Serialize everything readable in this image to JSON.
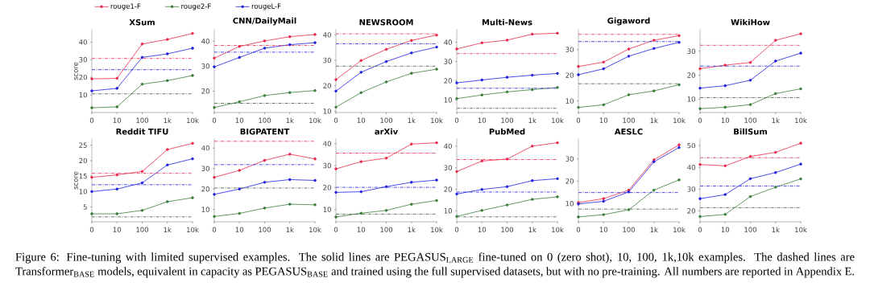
{
  "chart_data": [
    {
      "type": "line",
      "title": "XSum",
      "ylabel": "score",
      "categories": [
        "0",
        "10",
        "100",
        "1k",
        "10k"
      ],
      "legend": "top",
      "marker": "circle",
      "ylim": [
        0,
        47
      ],
      "yticks": [
        10,
        20,
        30,
        40
      ],
      "series": [
        {
          "name": "rouge1-F",
          "color": "#e8284a",
          "values": [
            19.1,
            19.4,
            38.9,
            41.5,
            44.9
          ]
        },
        {
          "name": "rouge2-F",
          "color": "#3a7d3a",
          "values": [
            2.7,
            3.2,
            16.1,
            18.1,
            21.0
          ]
        },
        {
          "name": "rougeL-F",
          "color": "#1f1fe0",
          "values": [
            12.3,
            13.7,
            31.3,
            33.3,
            36.5
          ]
        }
      ],
      "ref_lines": [
        {
          "axis": "y",
          "value": 30.7,
          "color": "#e8284a",
          "line_style": "dashdot"
        },
        {
          "axis": "y",
          "value": 10.6,
          "color": "#3a5a3a",
          "line_style": "dashdot"
        },
        {
          "axis": "y",
          "value": 24.3,
          "color": "#1f1fe0",
          "line_style": "dashdot"
        }
      ],
      "annotations": [
        "Figure 6: Fine-tuning with limited supervised examples. The solid lines are PEGASUS$_{LARGE}$ fine-tuned on 0 (zero shot), 10, 100, 1k,10k examples. The dashed lines are Transformer$_{BASE}$ models, equivalent in capacity as PEGASUS$_{BASE}$ and trained using the full supervised datasets, but with no pre-training. All numbers are reported in Appendix E."
      ]
    },
    {
      "type": "line",
      "title": "CNN/DailyMail",
      "categories": [
        "0",
        "10",
        "100",
        "1k",
        "10k"
      ],
      "marker": "circle",
      "ylim": [
        11.4,
        44.6
      ],
      "yticks": [
        20,
        30,
        40
      ],
      "series": [
        {
          "color": "#e8284a",
          "values": [
            33.2,
            37.9,
            40.1,
            41.8,
            42.7
          ]
        },
        {
          "color": "#3a7d3a",
          "values": [
            13.4,
            15.7,
            18.2,
            19.4,
            20.2
          ]
        },
        {
          "color": "#1f1fe0",
          "values": [
            29.7,
            33.5,
            37.2,
            38.6,
            39.4
          ]
        }
      ],
      "ref_lines": [
        {
          "axis": "y",
          "value": 38.3,
          "color": "#e8284a",
          "line_style": "dashdot"
        },
        {
          "axis": "y",
          "value": 15.1,
          "color": "#3a5a3a",
          "line_style": "dashdot"
        },
        {
          "axis": "y",
          "value": 35.6,
          "color": "#1f1fe0",
          "line_style": "dashdot"
        }
      ]
    },
    {
      "type": "line",
      "title": "NEWSROOM",
      "categories": [
        "0",
        "10",
        "100",
        "1k",
        "10k"
      ],
      "marker": "circle",
      "ylim": [
        9.5,
        42
      ],
      "yticks": [
        10,
        20,
        30,
        40
      ],
      "series": [
        {
          "color": "#e8284a",
          "values": [
            22.4,
            29.9,
            34.3,
            37.8,
            39.9
          ]
        },
        {
          "color": "#3a7d3a",
          "values": [
            11.6,
            17.3,
            21.5,
            24.9,
            26.5
          ]
        },
        {
          "color": "#1f1fe0",
          "values": [
            17.9,
            25.3,
            29.5,
            32.9,
            35.2
          ]
        }
      ],
      "ref_lines": [
        {
          "axis": "y",
          "value": 40.4,
          "color": "#e8284a",
          "line_style": "dashdot"
        },
        {
          "axis": "y",
          "value": 27.7,
          "color": "#3a5a3a",
          "line_style": "dashdot"
        },
        {
          "axis": "y",
          "value": 36.5,
          "color": "#1f1fe0",
          "line_style": "dashdot"
        }
      ]
    },
    {
      "type": "line",
      "title": "Multi-News",
      "categories": [
        "0",
        "10",
        "100",
        "1k",
        "10k"
      ],
      "marker": "circle",
      "ylim": [
        3.5,
        46.5
      ],
      "yticks": [
        10,
        20,
        30,
        40
      ],
      "series": [
        {
          "color": "#e8284a",
          "values": [
            36.5,
            39.7,
            41.1,
            44.2,
            44.7
          ]
        },
        {
          "color": "#3a7d3a",
          "values": [
            10.7,
            12.6,
            14.2,
            15.4,
            16.5
          ]
        },
        {
          "color": "#1f1fe0",
          "values": [
            18.9,
            20.4,
            21.8,
            22.9,
            23.8
          ]
        }
      ],
      "ref_lines": [
        {
          "axis": "y",
          "value": 34.1,
          "color": "#e8284a",
          "line_style": "dashdot"
        },
        {
          "axis": "y",
          "value": 5.7,
          "color": "#3a5a3a",
          "line_style": "dashdot"
        },
        {
          "axis": "y",
          "value": 16.1,
          "color": "#1f1fe0",
          "line_style": "dashdot"
        }
      ]
    },
    {
      "type": "line",
      "title": "Gigaword",
      "categories": [
        "0",
        "10",
        "100",
        "1k",
        "10k"
      ],
      "marker": "circle",
      "ylim": [
        5.5,
        37.7
      ],
      "yticks": [
        10,
        20,
        30
      ],
      "series": [
        {
          "color": "#e8284a",
          "values": [
            23.4,
            25.1,
            30.2,
            33.6,
            35.4
          ]
        },
        {
          "color": "#3a7d3a",
          "values": [
            7.5,
            8.5,
            12.4,
            13.9,
            16.3
          ]
        },
        {
          "color": "#1f1fe0",
          "values": [
            20.2,
            22.5,
            27.4,
            30.4,
            32.8
          ]
        }
      ],
      "ref_lines": [
        {
          "axis": "y",
          "value": 35.9,
          "color": "#e8284a",
          "line_style": "dashdot"
        },
        {
          "axis": "y",
          "value": 16.7,
          "color": "#3a5a3a",
          "line_style": "dashdot"
        },
        {
          "axis": "y",
          "value": 33.1,
          "color": "#1f1fe0",
          "line_style": "dashdot"
        }
      ]
    },
    {
      "type": "line",
      "title": "WikiHow",
      "categories": [
        "0",
        "10",
        "100",
        "1k",
        "10k"
      ],
      "marker": "circle",
      "ylim": [
        4.4,
        39
      ],
      "yticks": [
        10,
        20,
        30
      ],
      "series": [
        {
          "color": "#e8284a",
          "values": [
            22.7,
            24.2,
            25.3,
            34.6,
            37.3
          ]
        },
        {
          "color": "#3a7d3a",
          "values": [
            6.0,
            6.6,
            7.7,
            12.3,
            14.3
          ]
        },
        {
          "color": "#1f1fe0",
          "values": [
            14.6,
            15.6,
            17.9,
            25.9,
            29.2
          ]
        }
      ],
      "ref_lines": [
        {
          "axis": "y",
          "value": 32.5,
          "color": "#e8284a",
          "line_style": "dashdot"
        },
        {
          "axis": "y",
          "value": 10.6,
          "color": "#3a5a3a",
          "line_style": "dashdot"
        },
        {
          "axis": "y",
          "value": 23.8,
          "color": "#1f1fe0",
          "line_style": "dashdot"
        }
      ]
    },
    {
      "type": "line",
      "title": "Reddit TIFU",
      "ylabel": "score",
      "categories": [
        "0",
        "10",
        "100",
        "1k",
        "10k"
      ],
      "marker": "circle",
      "ylim": [
        0.2,
        27
      ],
      "yticks": [
        5,
        10,
        15,
        20,
        25
      ],
      "series": [
        {
          "color": "#e8284a",
          "values": [
            14.6,
            15.4,
            16.5,
            23.6,
            25.6
          ]
        },
        {
          "color": "#3a7d3a",
          "values": [
            2.8,
            2.8,
            3.9,
            6.7,
            8.0
          ]
        },
        {
          "color": "#1f1fe0",
          "values": [
            10.0,
            10.8,
            12.8,
            18.6,
            20.6
          ]
        }
      ],
      "ref_lines": [
        {
          "axis": "y",
          "value": 15.9,
          "color": "#e8284a",
          "line_style": "dashdot"
        },
        {
          "axis": "y",
          "value": 1.8,
          "color": "#3a5a3a",
          "line_style": "dashdot"
        },
        {
          "axis": "y",
          "value": 12.2,
          "color": "#1f1fe0",
          "line_style": "dashdot"
        }
      ]
    },
    {
      "type": "line",
      "title": "BIGPATENT",
      "categories": [
        "0",
        "10",
        "100",
        "1k",
        "10k"
      ],
      "marker": "circle",
      "ylim": [
        4,
        44.4
      ],
      "yticks": [
        10,
        20,
        30,
        40
      ],
      "series": [
        {
          "color": "#e8284a",
          "values": [
            25.7,
            29.1,
            34.0,
            37.0,
            34.7
          ]
        },
        {
          "color": "#3a7d3a",
          "values": [
            6.6,
            8.1,
            10.7,
            12.6,
            12.3
          ]
        },
        {
          "color": "#1f1fe0",
          "values": [
            17.4,
            20.0,
            23.3,
            24.6,
            24.2
          ]
        }
      ],
      "ref_lines": [
        {
          "axis": "y",
          "value": 43.3,
          "color": "#e8284a",
          "line_style": "dashdot"
        },
        {
          "axis": "y",
          "value": 20.5,
          "color": "#3a5a3a",
          "line_style": "dashdot"
        },
        {
          "axis": "y",
          "value": 31.9,
          "color": "#1f1fe0",
          "line_style": "dashdot"
        }
      ]
    },
    {
      "type": "line",
      "title": "arXiv",
      "categories": [
        "0",
        "10",
        "100",
        "1k",
        "10k"
      ],
      "marker": "circle",
      "ylim": [
        4.4,
        42.1
      ],
      "yticks": [
        10,
        20,
        30,
        40
      ],
      "series": [
        {
          "color": "#e8284a",
          "values": [
            28.5,
            31.8,
            33.4,
            39.8,
            40.4
          ]
        },
        {
          "color": "#3a7d3a",
          "values": [
            6.6,
            8.3,
            9.6,
            12.4,
            14.1
          ]
        },
        {
          "color": "#1f1fe0",
          "values": [
            17.8,
            18.1,
            20.4,
            22.4,
            23.4
          ]
        }
      ],
      "ref_lines": [
        {
          "axis": "y",
          "value": 35.7,
          "color": "#e8284a",
          "line_style": "dashdot"
        },
        {
          "axis": "y",
          "value": 7.9,
          "color": "#3a5a3a",
          "line_style": "dashdot"
        },
        {
          "axis": "y",
          "value": 20.1,
          "color": "#1f1fe0",
          "line_style": "dashdot"
        }
      ]
    },
    {
      "type": "line",
      "title": "PubMed",
      "categories": [
        "0",
        "10",
        "100",
        "1k",
        "10k"
      ],
      "marker": "circle",
      "ylim": [
        4.9,
        43.3
      ],
      "yticks": [
        10,
        20,
        30,
        40
      ],
      "series": [
        {
          "color": "#e8284a",
          "values": [
            28.2,
            33.1,
            34.0,
            40.0,
            41.6
          ]
        },
        {
          "color": "#3a7d3a",
          "values": [
            7.4,
            10.2,
            12.7,
            15.3,
            16.5
          ]
        },
        {
          "color": "#1f1fe0",
          "values": [
            17.8,
            19.9,
            21.2,
            24.0,
            24.9
          ]
        }
      ],
      "ref_lines": [
        {
          "axis": "y",
          "value": 33.8,
          "color": "#e8284a",
          "line_style": "dashdot"
        },
        {
          "axis": "y",
          "value": 7.2,
          "color": "#3a5a3a",
          "line_style": "dashdot"
        },
        {
          "axis": "y",
          "value": 18.7,
          "color": "#1f1fe0",
          "line_style": "dashdot"
        }
      ]
    },
    {
      "type": "line",
      "title": "AESLC",
      "categories": [
        "0",
        "10",
        "100",
        "1k",
        "10k"
      ],
      "marker": "circle",
      "ylim": [
        1.8,
        38.9
      ],
      "yticks": [
        10,
        20,
        30
      ],
      "series": [
        {
          "color": "#e8284a",
          "values": [
            10.4,
            12.2,
            16.0,
            29.6,
            36.3
          ]
        },
        {
          "color": "#3a7d3a",
          "values": [
            4.0,
            5.0,
            7.2,
            16.0,
            20.6
          ]
        },
        {
          "color": "#1f1fe0",
          "values": [
            9.8,
            11.0,
            15.2,
            28.7,
            35.1
          ]
        }
      ],
      "ref_lines": [
        {
          "axis": "y",
          "value": 7.5,
          "color": "#3a5a3a",
          "line_style": "dashdot"
        },
        {
          "axis": "y",
          "value": 14.9,
          "color": "#1f1fe0",
          "line_style": "dashdot"
        }
      ]
    },
    {
      "type": "line",
      "title": "BillSum",
      "categories": [
        "0",
        "10",
        "100",
        "1k",
        "10k"
      ],
      "marker": "circle",
      "ylim": [
        15,
        53
      ],
      "yticks": [
        20,
        30,
        40,
        50
      ],
      "series": [
        {
          "color": "#e8284a",
          "values": [
            41.3,
            40.7,
            45.0,
            46.9,
            51.1
          ]
        },
        {
          "color": "#3a7d3a",
          "values": [
            17.4,
            18.4,
            26.6,
            30.9,
            34.7
          ]
        },
        {
          "color": "#1f1fe0",
          "values": [
            25.6,
            27.5,
            34.8,
            37.6,
            41.5
          ]
        }
      ],
      "ref_lines": [
        {
          "axis": "y",
          "value": 44.4,
          "color": "#e8284a",
          "line_style": "dashdot"
        },
        {
          "axis": "y",
          "value": 21.5,
          "color": "#3a5a3a",
          "line_style": "dashdot"
        },
        {
          "axis": "y",
          "value": 31.4,
          "color": "#1f1fe0",
          "line_style": "dashdot"
        }
      ]
    }
  ]
}
